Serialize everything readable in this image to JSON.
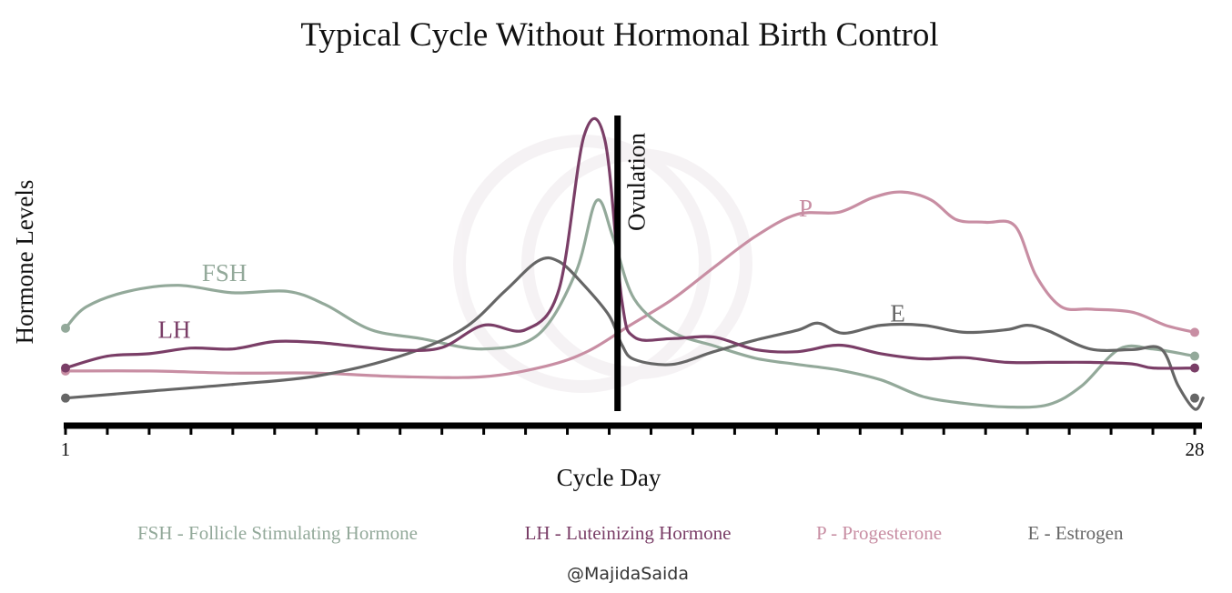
{
  "chart_data": {
    "type": "line",
    "title": "Typical Cycle Without Hormonal Birth Control",
    "xlabel": "Cycle Day",
    "ylabel": "Hormone Levels",
    "xlim": [
      1,
      28
    ],
    "ylim": [
      0,
      100
    ],
    "x_tick_labels": [
      {
        "x": 1,
        "label": "1"
      },
      {
        "x": 28,
        "label": "28"
      }
    ],
    "minor_ticks_every": 1,
    "grid": false,
    "annotation": {
      "x": 14.2,
      "label": "Ovulation"
    },
    "series": [
      {
        "key": "fsh",
        "name": "FSH",
        "color": "#93a99a",
        "points": [
          [
            1,
            28.8
          ],
          [
            1.5,
            36
          ],
          [
            2.5,
            41.2
          ],
          [
            3.7,
            43.2
          ],
          [
            5,
            40.7
          ],
          [
            6.3,
            41.2
          ],
          [
            7.2,
            36.8
          ],
          [
            8.3,
            28.3
          ],
          [
            9.5,
            25.3
          ],
          [
            11,
            21.8
          ],
          [
            12.3,
            26.6
          ],
          [
            13.2,
            47.5
          ],
          [
            13.7,
            71.7
          ],
          [
            14.1,
            59
          ],
          [
            14.6,
            38.6
          ],
          [
            15.5,
            27.6
          ],
          [
            16.5,
            22.9
          ],
          [
            17.5,
            18.7
          ],
          [
            18.5,
            16.6
          ],
          [
            19.5,
            14.7
          ],
          [
            20.5,
            11.4
          ],
          [
            21.5,
            5.8
          ],
          [
            22.5,
            3.5
          ],
          [
            23.5,
            2.3
          ],
          [
            24.5,
            3.1
          ],
          [
            25.3,
            9.4
          ],
          [
            26.2,
            21.8
          ],
          [
            27,
            21.8
          ],
          [
            28,
            19.4
          ]
        ]
      },
      {
        "key": "lh",
        "name": "LH",
        "color": "#7a3e67",
        "points": [
          [
            1,
            15.4
          ],
          [
            2,
            19.4
          ],
          [
            3,
            20.2
          ],
          [
            4,
            22.1
          ],
          [
            5,
            21.8
          ],
          [
            6,
            24.3
          ],
          [
            7,
            24
          ],
          [
            8,
            22.6
          ],
          [
            9,
            21.4
          ],
          [
            10,
            22.3
          ],
          [
            11,
            29.8
          ],
          [
            12,
            28.3
          ],
          [
            12.8,
            41.9
          ],
          [
            13.4,
            93.5
          ],
          [
            13.9,
            91.9
          ],
          [
            14.3,
            38.4
          ],
          [
            14.6,
            25.8
          ],
          [
            15.5,
            25.3
          ],
          [
            16.5,
            25.8
          ],
          [
            17.5,
            21.6
          ],
          [
            18.5,
            20.9
          ],
          [
            19.5,
            23.1
          ],
          [
            20.5,
            20.2
          ],
          [
            21.5,
            18.5
          ],
          [
            22.5,
            18.9
          ],
          [
            23.5,
            17.3
          ],
          [
            24.5,
            17.3
          ],
          [
            25.5,
            17.3
          ],
          [
            26.5,
            16.8
          ],
          [
            27,
            15.4
          ],
          [
            28,
            15.4
          ]
        ]
      },
      {
        "key": "p",
        "name": "P",
        "color": "#c88ea3",
        "points": [
          [
            1,
            14.4
          ],
          [
            3,
            14.4
          ],
          [
            5,
            13.7
          ],
          [
            7,
            13.7
          ],
          [
            9,
            12.5
          ],
          [
            11,
            12.5
          ],
          [
            12.5,
            16.1
          ],
          [
            13.5,
            21.1
          ],
          [
            14.5,
            29.8
          ],
          [
            15.5,
            38.4
          ],
          [
            16.5,
            49.2
          ],
          [
            17.5,
            59.7
          ],
          [
            18.5,
            67.1
          ],
          [
            19.5,
            67.8
          ],
          [
            20.3,
            72.7
          ],
          [
            21,
            74.6
          ],
          [
            21.7,
            71.9
          ],
          [
            22.3,
            65.3
          ],
          [
            23,
            64.4
          ],
          [
            23.7,
            63.2
          ],
          [
            24.2,
            46.6
          ],
          [
            24.8,
            36.1
          ],
          [
            25.5,
            35.2
          ],
          [
            26.5,
            34.2
          ],
          [
            27.3,
            29.8
          ],
          [
            28,
            27.4
          ]
        ]
      },
      {
        "key": "e",
        "name": "E",
        "color": "#666666",
        "points": [
          [
            1,
            5.3
          ],
          [
            3,
            7.6
          ],
          [
            5,
            9.9
          ],
          [
            7,
            12.7
          ],
          [
            9,
            19.4
          ],
          [
            10.5,
            28.5
          ],
          [
            11.5,
            41.2
          ],
          [
            12.3,
            51.4
          ],
          [
            12.8,
            51.2
          ],
          [
            13.4,
            43.2
          ],
          [
            14,
            33
          ],
          [
            14.3,
            23.3
          ],
          [
            14.6,
            18.3
          ],
          [
            15.5,
            16.6
          ],
          [
            16.5,
            20.9
          ],
          [
            17.5,
            24.8
          ],
          [
            18.5,
            28.1
          ],
          [
            19,
            30.5
          ],
          [
            19.6,
            27.1
          ],
          [
            20.5,
            29.8
          ],
          [
            21.5,
            29.8
          ],
          [
            22.5,
            27.4
          ],
          [
            23.5,
            28.3
          ],
          [
            24,
            29.8
          ],
          [
            24.5,
            27.9
          ],
          [
            25.5,
            21.8
          ],
          [
            26.5,
            21.6
          ],
          [
            27.2,
            21.8
          ],
          [
            27.6,
            9.6
          ],
          [
            28,
            1.6
          ],
          [
            28.2,
            5.3
          ]
        ]
      }
    ],
    "series_labels": [
      {
        "key": "fsh",
        "text": "FSH",
        "x": 4.8,
        "y": 44.7
      },
      {
        "key": "lh",
        "text": "LH",
        "x": 3.6,
        "y": 25.5
      },
      {
        "key": "p",
        "text": "P",
        "x": 18.7,
        "y": 66.4
      },
      {
        "key": "e",
        "text": "E",
        "x": 20.9,
        "y": 31
      }
    ]
  },
  "legend": [
    {
      "key": "fsh",
      "text": "FSH - Follicle Stimulating Hormone",
      "color": "#93a99a"
    },
    {
      "key": "lh",
      "text": "LH - Luteinizing Hormone",
      "color": "#7a3e67"
    },
    {
      "key": "p",
      "text": "P - Progesterone",
      "color": "#c88ea3"
    },
    {
      "key": "e",
      "text": "E - Estrogen",
      "color": "#666666"
    }
  ],
  "credit": "@MajidaSaida"
}
